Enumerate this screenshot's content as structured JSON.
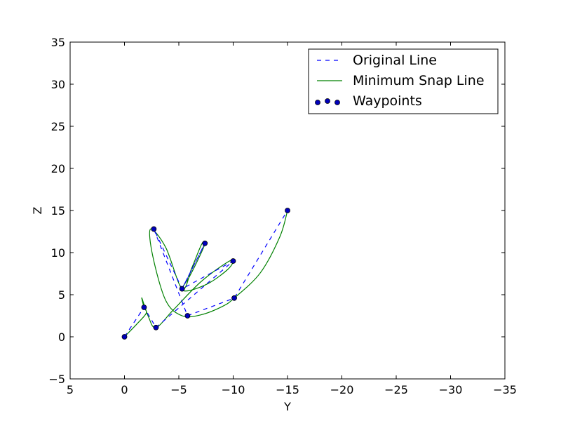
{
  "chart_data": {
    "type": "line",
    "xlabel": "Y",
    "ylabel": "Z",
    "xlim": [
      5,
      -35
    ],
    "ylim": [
      -5,
      35
    ],
    "x_ticks": [
      5,
      0,
      -5,
      -10,
      -15,
      -20,
      -25,
      -30,
      -35
    ],
    "y_ticks": [
      -5,
      0,
      5,
      10,
      15,
      20,
      25,
      30,
      35
    ],
    "x_tick_labels": [
      "5",
      "0",
      "−5",
      "−10",
      "−15",
      "−20",
      "−25",
      "−30",
      "−35"
    ],
    "y_tick_labels": [
      "−5",
      "0",
      "5",
      "10",
      "15",
      "20",
      "25",
      "30",
      "35"
    ],
    "grid": false,
    "legend_position": "top-right",
    "series": [
      {
        "name": "Original Line",
        "style": "dashed",
        "color": "#0000ff",
        "x": [
          0,
          -1.8,
          -2.9,
          -10.0,
          -5.3,
          -7.4,
          -5.3,
          -2.7,
          -5.8,
          -10.1,
          -15.0
        ],
        "y": [
          0,
          3.5,
          1.1,
          9.0,
          5.7,
          11.1,
          5.7,
          12.8,
          2.5,
          4.6,
          15.0
        ]
      },
      {
        "name": "Minimum Snap Line",
        "style": "solid",
        "color": "#008000",
        "x": [
          0,
          -1.2,
          -2.0,
          -1.8,
          -1.6,
          -2.2,
          -2.9,
          -4.5,
          -7.0,
          -9.4,
          -10.0,
          -9.5,
          -7.8,
          -6.0,
          -5.3,
          -6.0,
          -7.0,
          -7.4,
          -7.1,
          -6.2,
          -5.3,
          -3.8,
          -2.4,
          -2.6,
          -3.8,
          -5.3,
          -7.0,
          -9.0,
          -10.1,
          -12.5,
          -14.3,
          -15.0
        ],
        "y": [
          0,
          1.6,
          2.8,
          3.5,
          4.6,
          2.4,
          1.1,
          3.2,
          6.5,
          8.8,
          9.0,
          8.0,
          6.4,
          5.5,
          5.7,
          7.2,
          9.8,
          11.1,
          11.0,
          8.2,
          5.7,
          10.6,
          12.8,
          9.6,
          4.3,
          2.5,
          2.6,
          3.6,
          4.6,
          7.6,
          11.9,
          15.0
        ]
      },
      {
        "name": "Waypoints",
        "style": "markers",
        "color": "#0000bb",
        "x": [
          0,
          -1.8,
          -2.9,
          -10.0,
          -5.3,
          -7.4,
          -2.7,
          -5.8,
          -10.1,
          -15.0
        ],
        "y": [
          0,
          3.5,
          1.1,
          9.0,
          5.7,
          11.1,
          12.8,
          2.5,
          4.6,
          15.0
        ]
      }
    ]
  }
}
